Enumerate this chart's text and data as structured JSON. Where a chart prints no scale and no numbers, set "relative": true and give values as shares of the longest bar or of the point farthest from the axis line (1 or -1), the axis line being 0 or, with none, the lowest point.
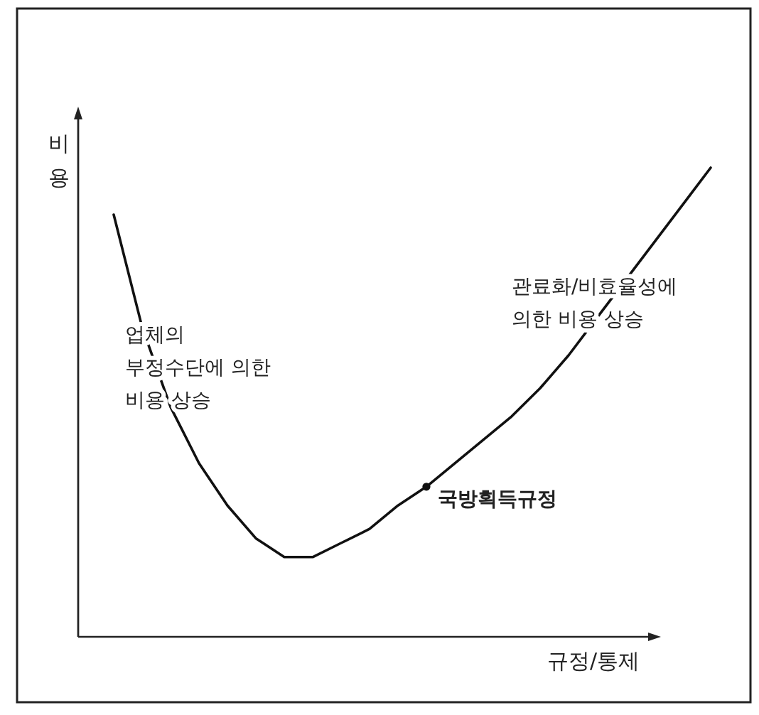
{
  "chart_data": {
    "type": "line",
    "relative": true,
    "xlabel": "규정/통제",
    "ylabel": "비용",
    "categories": [
      null,
      null,
      null,
      null,
      null,
      null,
      null,
      null,
      null,
      null,
      null,
      null,
      null,
      null,
      null,
      null,
      null,
      null,
      null,
      null,
      null,
      null
    ],
    "series": [
      {
        "color": "#111111",
        "values": [
          0.9,
          0.66,
          0.49,
          0.37,
          0.28,
          0.21,
          0.17,
          0.17,
          0.2,
          0.23,
          0.28,
          0.32,
          0.37,
          0.42,
          0.47,
          0.53,
          0.6,
          0.68,
          0.76,
          0.84,
          0.92,
          1
        ]
      }
    ],
    "marker": "none",
    "line_style": "solid",
    "annotations": [
      "업체의\n부정수단에 의한\n비용 상승",
      "관료화/비효율성에\n의한 비용 상승",
      "국방획득규정"
    ]
  }
}
